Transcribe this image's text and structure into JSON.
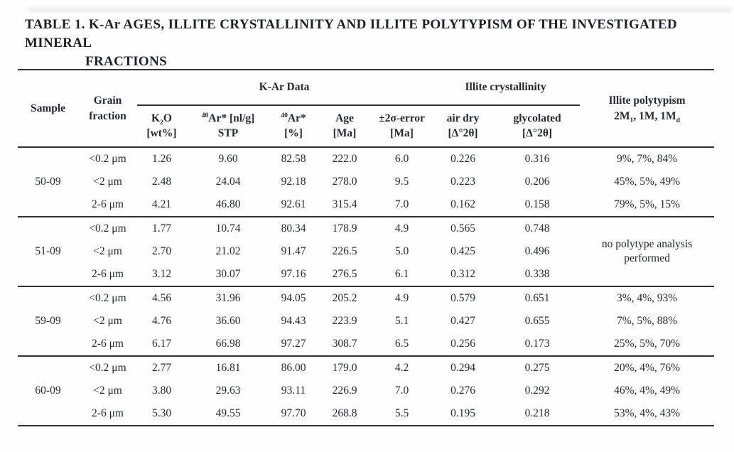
{
  "caption": {
    "line1": "TABLE 1. K-Ar AGES, ILLITE CRYSTALLINITY AND ILLITE POLYTYPISM OF THE INVESTIGATED MINERAL",
    "line2": "FRACTIONS"
  },
  "table": {
    "header": {
      "sample": "Sample",
      "grain_l1": "Grain",
      "grain_l2": "fraction",
      "group_kar": "K-Ar Data",
      "group_crystallinity": "Illite crystallinity",
      "polytypism_l1": "Illite polytypism",
      "polytypism_l2_html": "2M<sub>1</sub>, 1M, 1M<sub>d</sub>",
      "cols": [
        {
          "l1_html": "K<sub>2</sub>O",
          "l2": "[wt%]"
        },
        {
          "l1_html": "<sup>40</sup>Ar* [nl/g]",
          "l2": "STP"
        },
        {
          "l1_html": "<sup>40</sup>Ar*",
          "l2": "[%]"
        },
        {
          "l1_html": "Age",
          "l2": "[Ma]"
        },
        {
          "l1_html": "±2σ-error",
          "l2": "[Ma]"
        },
        {
          "l1_html": "air dry",
          "l2": "[Δ°2θ]"
        },
        {
          "l1_html": "glycolated",
          "l2": "[Δ°2θ]"
        }
      ]
    },
    "groups": [
      {
        "sample": "50-09",
        "rows": [
          {
            "fraction": "<0.2 μm",
            "k2o": "1.26",
            "ar_stp": "9.60",
            "ar_pct": "82.58",
            "age": "222.0",
            "err2s": "6.0",
            "air_dry": "0.226",
            "glycolated": "0.316",
            "polytypism": "9%, 7%, 84%"
          },
          {
            "fraction": "<2 μm",
            "k2o": "2.48",
            "ar_stp": "24.04",
            "ar_pct": "92.18",
            "age": "278.0",
            "err2s": "9.5",
            "air_dry": "0.223",
            "glycolated": "0.206",
            "polytypism": "45%, 5%, 49%"
          },
          {
            "fraction": "2-6 μm",
            "k2o": "4.21",
            "ar_stp": "46.80",
            "ar_pct": "92.61",
            "age": "315.4",
            "err2s": "7.0",
            "air_dry": "0.162",
            "glycolated": "0.158",
            "polytypism": "79%, 5%, 15%"
          }
        ]
      },
      {
        "sample": "51-09",
        "polytypism_merged": "no polytype analysis performed",
        "rows": [
          {
            "fraction": "<0.2 μm",
            "k2o": "1.77",
            "ar_stp": "10.74",
            "ar_pct": "80.34",
            "age": "178.9",
            "err2s": "4.9",
            "air_dry": "0.565",
            "glycolated": "0.748"
          },
          {
            "fraction": "<2 μm",
            "k2o": "2.70",
            "ar_stp": "21.02",
            "ar_pct": "91.47",
            "age": "226.5",
            "err2s": "5.0",
            "air_dry": "0.425",
            "glycolated": "0.496"
          },
          {
            "fraction": "2-6 μm",
            "k2o": "3.12",
            "ar_stp": "30.07",
            "ar_pct": "97.16",
            "age": "276.5",
            "err2s": "6.1",
            "air_dry": "0.312",
            "glycolated": "0.338"
          }
        ]
      },
      {
        "sample": "59-09",
        "rows": [
          {
            "fraction": "<0.2 μm",
            "k2o": "4.56",
            "ar_stp": "31.96",
            "ar_pct": "94.05",
            "age": "205.2",
            "err2s": "4.9",
            "air_dry": "0.579",
            "glycolated": "0.651",
            "polytypism": "3%, 4%, 93%"
          },
          {
            "fraction": "<2 μm",
            "k2o": "4.76",
            "ar_stp": "36.60",
            "ar_pct": "94.43",
            "age": "223.9",
            "err2s": "5.1",
            "air_dry": "0.427",
            "glycolated": "0.655",
            "polytypism": "7%, 5%, 88%"
          },
          {
            "fraction": "2-6 μm",
            "k2o": "6.17",
            "ar_stp": "66.98",
            "ar_pct": "97.27",
            "age": "308.7",
            "err2s": "6.5",
            "air_dry": "0.256",
            "glycolated": "0.173",
            "polytypism": "25%, 5%, 70%"
          }
        ]
      },
      {
        "sample": "60-09",
        "rows": [
          {
            "fraction": "<0.2 μm",
            "k2o": "2.77",
            "ar_stp": "16.81",
            "ar_pct": "86.00",
            "age": "179.0",
            "err2s": "4.2",
            "air_dry": "0.294",
            "glycolated": "0.275",
            "polytypism": "20%, 4%, 76%"
          },
          {
            "fraction": "<2 μm",
            "k2o": "3.80",
            "ar_stp": "29.63",
            "ar_pct": "93.11",
            "age": "226.9",
            "err2s": "7.0",
            "air_dry": "0.276",
            "glycolated": "0.292",
            "polytypism": "46%, 4%, 49%"
          },
          {
            "fraction": "2-6 μm",
            "k2o": "5.30",
            "ar_stp": "49.55",
            "ar_pct": "97.70",
            "age": "268.8",
            "err2s": "5.5",
            "air_dry": "0.195",
            "glycolated": "0.218",
            "polytypism": "53%, 4%, 43%"
          }
        ]
      }
    ]
  }
}
